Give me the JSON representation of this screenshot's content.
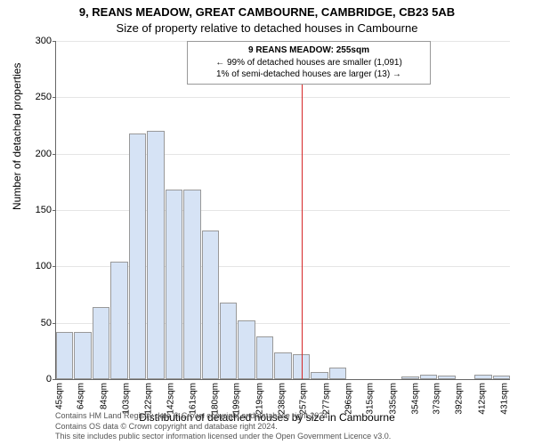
{
  "title_main": "9, REANS MEADOW, GREAT CAMBOURNE, CAMBRIDGE, CB23 5AB",
  "title_sub": "Size of property relative to detached houses in Cambourne",
  "legend": {
    "line1": "9 REANS MEADOW: 255sqm",
    "line2": "← 99% of detached houses are smaller (1,091)",
    "line3": "1% of semi-detached houses are larger (13) →"
  },
  "ylabel": "Number of detached properties",
  "xlabel": "Distribution of detached houses by size in Cambourne",
  "attribution": "Contains HM Land Registry data © Crown copyright and database right 2024.\nContains OS data © Crown copyright and database right 2024.\nThis site includes public sector information licensed under the Open Government Licence v3.0.",
  "chart": {
    "type": "histogram",
    "ylim": [
      0,
      300
    ],
    "yticks": [
      0,
      50,
      100,
      150,
      200,
      250,
      300
    ],
    "xticks": [
      "45sqm",
      "64sqm",
      "84sqm",
      "103sqm",
      "122sqm",
      "142sqm",
      "161sqm",
      "180sqm",
      "199sqm",
      "219sqm",
      "238sqm",
      "257sqm",
      "277sqm",
      "296sqm",
      "315sqm",
      "335sqm",
      "354sqm",
      "373sqm",
      "392sqm",
      "412sqm",
      "431sqm"
    ],
    "values": [
      42,
      42,
      64,
      104,
      218,
      220,
      168,
      168,
      132,
      68,
      52,
      38,
      24,
      22,
      6,
      10,
      0,
      0,
      0,
      2,
      4,
      3,
      0,
      4,
      3
    ],
    "bar_color": "#d6e3f5",
    "bar_border": "#999999",
    "grid_color": "#e5e5e5",
    "axis_color": "#666666",
    "marker_line_color": "#d62728",
    "marker_value_sqm": 255,
    "x_domain": [
      42,
      436
    ],
    "background": "#ffffff",
    "title_fontsize": 13,
    "label_fontsize": 12,
    "tick_fontsize": 11
  }
}
